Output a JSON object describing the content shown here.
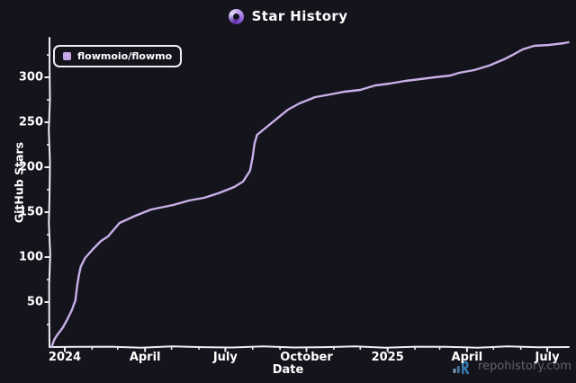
{
  "title": {
    "text": "Star History"
  },
  "legend": {
    "label": "flowmoio/flowmo",
    "swatch_color": "#c7a7e6"
  },
  "watermark": {
    "text": "repohistory.com"
  },
  "colors": {
    "background": "#14141d",
    "axis": "#eceef2",
    "label_text": "#ffffff",
    "line": "#c9b0e8",
    "legend_swatch": "#c7a7e6",
    "watermark_text": "#62626c",
    "logo_ring_light": "#e4d8f8",
    "logo_ring_dark": "#5d2ea6",
    "repo_logo_blue": "#3879ad",
    "repo_logo_light_blue": "#7e9fb8"
  },
  "chart_data": {
    "type": "line",
    "title": "Star History",
    "xlabel": "Date",
    "ylabel": "GitHub Stars",
    "grid": false,
    "legend_position": "top-left",
    "ylim": [
      0,
      344
    ],
    "x_range": [
      "2023-12-15",
      "2025-07-27"
    ],
    "y_ticks": [
      50,
      100,
      150,
      200,
      250,
      300
    ],
    "y_minor_ticks": [
      25,
      75,
      125,
      175,
      225,
      275,
      325
    ],
    "x_ticks": [
      {
        "label": "2024",
        "date": "2024-01-01"
      },
      {
        "label": "April",
        "date": "2024-04-01"
      },
      {
        "label": "July",
        "date": "2024-07-01"
      },
      {
        "label": "October",
        "date": "2024-10-01"
      },
      {
        "label": "2025",
        "date": "2025-01-01"
      },
      {
        "label": "April",
        "date": "2025-04-01"
      },
      {
        "label": "July",
        "date": "2025-07-01"
      }
    ],
    "series": [
      {
        "name": "flowmoio/flowmo",
        "color": "#c9b0e8",
        "points": [
          {
            "date": "2023-12-17",
            "stars": 0
          },
          {
            "date": "2023-12-20",
            "stars": 8
          },
          {
            "date": "2023-12-23",
            "stars": 13
          },
          {
            "date": "2023-12-27",
            "stars": 18
          },
          {
            "date": "2023-12-30",
            "stars": 22
          },
          {
            "date": "2024-01-04",
            "stars": 31
          },
          {
            "date": "2024-01-09",
            "stars": 41
          },
          {
            "date": "2024-01-13",
            "stars": 52
          },
          {
            "date": "2024-01-15",
            "stars": 68
          },
          {
            "date": "2024-01-17",
            "stars": 80
          },
          {
            "date": "2024-01-19",
            "stars": 89
          },
          {
            "date": "2024-01-24",
            "stars": 99
          },
          {
            "date": "2024-02-02",
            "stars": 109
          },
          {
            "date": "2024-02-11",
            "stars": 118
          },
          {
            "date": "2024-02-19",
            "stars": 123
          },
          {
            "date": "2024-03-03",
            "stars": 138
          },
          {
            "date": "2024-03-21",
            "stars": 146
          },
          {
            "date": "2024-04-08",
            "stars": 153
          },
          {
            "date": "2024-05-03",
            "stars": 158
          },
          {
            "date": "2024-05-21",
            "stars": 163
          },
          {
            "date": "2024-06-07",
            "stars": 166
          },
          {
            "date": "2024-06-23",
            "stars": 171
          },
          {
            "date": "2024-07-11",
            "stars": 178
          },
          {
            "date": "2024-07-21",
            "stars": 184
          },
          {
            "date": "2024-07-29",
            "stars": 196
          },
          {
            "date": "2024-08-01",
            "stars": 211
          },
          {
            "date": "2024-08-03",
            "stars": 226
          },
          {
            "date": "2024-08-06",
            "stars": 236
          },
          {
            "date": "2024-08-16",
            "stars": 244
          },
          {
            "date": "2024-08-26",
            "stars": 252
          },
          {
            "date": "2024-09-10",
            "stars": 264
          },
          {
            "date": "2024-09-23",
            "stars": 271
          },
          {
            "date": "2024-10-11",
            "stars": 278
          },
          {
            "date": "2024-10-28",
            "stars": 281
          },
          {
            "date": "2024-11-13",
            "stars": 284
          },
          {
            "date": "2024-12-01",
            "stars": 286
          },
          {
            "date": "2024-12-18",
            "stars": 291
          },
          {
            "date": "2025-01-03",
            "stars": 293
          },
          {
            "date": "2025-01-21",
            "stars": 296
          },
          {
            "date": "2025-02-07",
            "stars": 298
          },
          {
            "date": "2025-02-23",
            "stars": 300
          },
          {
            "date": "2025-03-13",
            "stars": 302
          },
          {
            "date": "2025-03-23",
            "stars": 305
          },
          {
            "date": "2025-04-09",
            "stars": 308
          },
          {
            "date": "2025-04-26",
            "stars": 313
          },
          {
            "date": "2025-05-13",
            "stars": 320
          },
          {
            "date": "2025-05-23",
            "stars": 325
          },
          {
            "date": "2025-06-03",
            "stars": 331
          },
          {
            "date": "2025-06-16",
            "stars": 335
          },
          {
            "date": "2025-07-03",
            "stars": 336
          },
          {
            "date": "2025-07-20",
            "stars": 338
          },
          {
            "date": "2025-07-25",
            "stars": 339
          }
        ]
      }
    ]
  }
}
